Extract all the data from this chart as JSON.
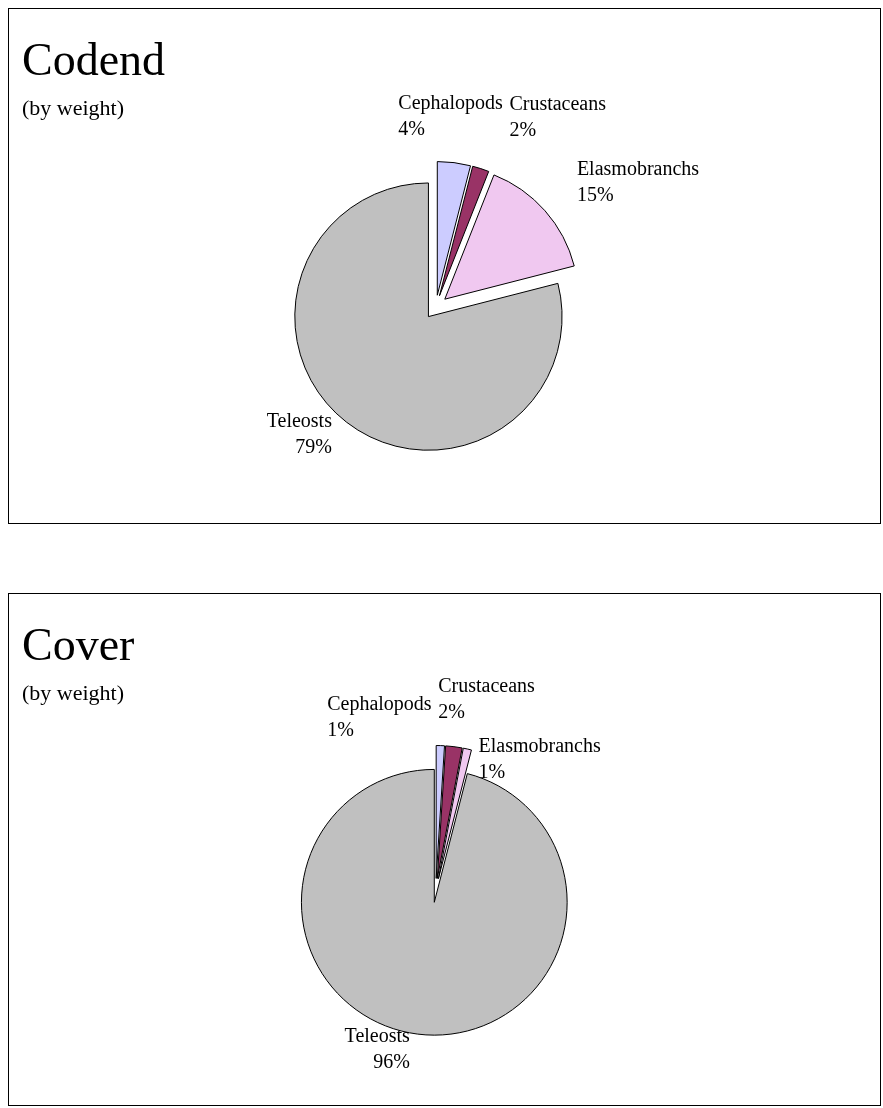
{
  "chart_data": [
    {
      "type": "pie",
      "title": "Codend",
      "subtitle": "(by weight)",
      "categories": [
        "Cephalopods",
        "Crustaceans",
        "Elasmobranchs",
        "Teleosts"
      ],
      "values": [
        4,
        2,
        15,
        79
      ],
      "value_labels": [
        "4%",
        "2%",
        "15%",
        "79%"
      ],
      "colors": [
        "#ccccff",
        "#993366",
        "#f0c8f0",
        "#c0c0c0"
      ]
    },
    {
      "type": "pie",
      "title": "Cover",
      "subtitle": "(by weight)",
      "categories": [
        "Cephalopods",
        "Crustaceans",
        "Elasmobranchs",
        "Teleosts"
      ],
      "values": [
        1,
        2,
        1,
        96
      ],
      "value_labels": [
        "1%",
        "2%",
        "1%",
        "96%"
      ],
      "colors": [
        "#ccccff",
        "#993366",
        "#f0c8f0",
        "#c0c0c0"
      ]
    }
  ]
}
